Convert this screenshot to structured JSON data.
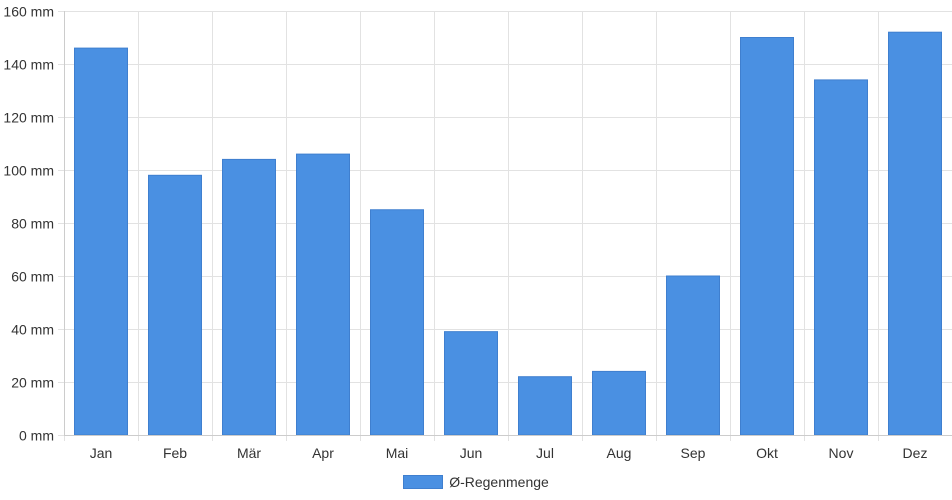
{
  "chart_data": {
    "type": "bar",
    "categories": [
      "Jan",
      "Feb",
      "Mär",
      "Apr",
      "Mai",
      "Jun",
      "Jul",
      "Aug",
      "Sep",
      "Okt",
      "Nov",
      "Dez"
    ],
    "series": [
      {
        "name": "Ø-Regenmenge",
        "values": [
          146,
          98,
          104,
          106,
          85,
          39,
          22,
          24,
          60,
          150,
          134,
          152
        ],
        "color": "#4a90e2"
      }
    ],
    "yticks": [
      "0 mm",
      "20 mm",
      "40 mm",
      "60 mm",
      "80 mm",
      "100 mm",
      "120 mm",
      "140 mm",
      "160 mm"
    ],
    "ylim": [
      0,
      160
    ],
    "title": "",
    "xlabel": "",
    "ylabel": "",
    "grid": true,
    "legend_position": "bottom-center"
  }
}
